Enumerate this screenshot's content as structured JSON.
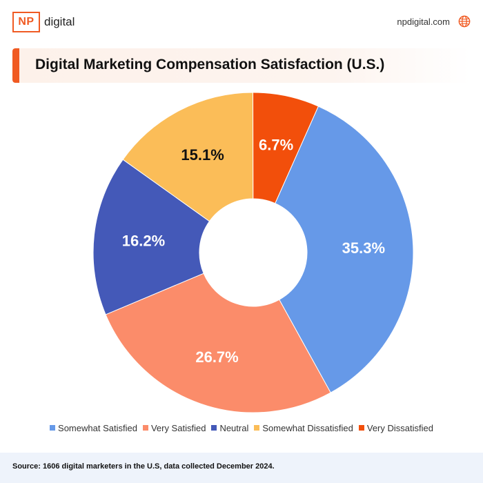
{
  "header": {
    "logo_mark": "NP",
    "logo_word": "digital",
    "site": "npdigital.com"
  },
  "icons": {
    "globe": "globe-icon"
  },
  "colors": {
    "brand": "#f05a22",
    "title_bg": "#fdf1ea",
    "footer_bg": "#eef3fb"
  },
  "chart_data": {
    "type": "pie",
    "donut": true,
    "title": "Digital Marketing Compensation Satisfaction (U.S.)",
    "legend_position": "bottom",
    "slices": [
      {
        "label": "Somewhat Satisfied",
        "value": 35.3,
        "display": "35.3%",
        "color": "#6699e8",
        "text_color": "#ffffff"
      },
      {
        "label": "Very Satisfied",
        "value": 26.7,
        "display": "26.7%",
        "color": "#fb8c6a",
        "text_color": "#ffffff"
      },
      {
        "label": "Neutral",
        "value": 16.2,
        "display": "16.2%",
        "color": "#4459b8",
        "text_color": "#ffffff"
      },
      {
        "label": "Somewhat Dissatisfied",
        "value": 15.1,
        "display": "15.1%",
        "color": "#fbbd58",
        "text_color": "#111111"
      },
      {
        "label": "Very Dissatisfied",
        "value": 6.7,
        "display": "6.7%",
        "color": "#f24f0b",
        "text_color": "#ffffff"
      }
    ]
  },
  "footer": {
    "source": "Source: 1606 digital marketers in the U.S, data collected December 2024."
  }
}
